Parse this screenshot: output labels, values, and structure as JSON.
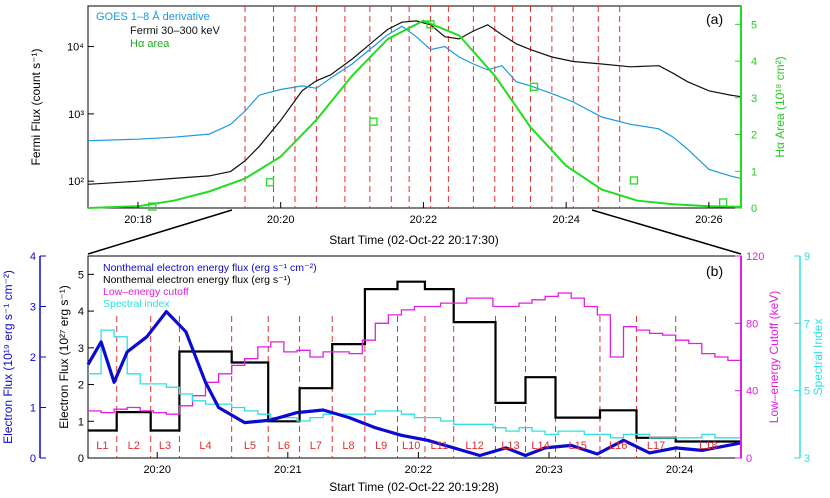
{
  "chart_data": [
    {
      "type": "line",
      "panel_label": "(a)",
      "xlabel": "Start Time (02-Oct-22 20:17:30)",
      "ylabel_left": "Fermi Flux (count s⁻¹)",
      "ylabel_right": "Hα Area (10¹⁸ cm²)",
      "x_range_minutes": [
        -0.2,
        8.95
      ],
      "x_ticks": [
        "20:18",
        "20:20",
        "20:22",
        "20:24",
        "20:26"
      ],
      "x_tick_minutes": [
        0.5,
        2.5,
        4.5,
        6.5,
        8.5
      ],
      "y_left_scale": "log",
      "y_left_range": [
        40,
        40000
      ],
      "y_left_ticks": [
        "10²",
        "10³",
        "10⁴"
      ],
      "y_left_tick_values": [
        100,
        1000,
        10000
      ],
      "y_right_range": [
        0,
        5.5
      ],
      "y_right_ticks": [
        "0",
        "1",
        "2",
        "3",
        "4",
        "5"
      ],
      "legend": [
        {
          "name": "GOES 1–8 Å derivative",
          "color": "#1a9ae0"
        },
        {
          "name": "Fermi 30–300 keV",
          "color": "#111111"
        },
        {
          "name": "Hα area",
          "color": "#22dd22"
        }
      ],
      "series": [
        {
          "name": "Fermi 30–300 keV",
          "axis": "left",
          "x": [
            -0.2,
            0.5,
            1.0,
            1.5,
            1.8,
            2.0,
            2.2,
            2.5,
            2.8,
            3.0,
            3.2,
            3.5,
            3.8,
            4.0,
            4.2,
            4.4,
            4.6,
            4.8,
            5.0,
            5.2,
            5.4,
            5.6,
            5.8,
            6.0,
            6.3,
            6.6,
            7.0,
            7.4,
            7.8,
            8.0,
            8.2,
            8.5,
            8.8,
            8.95
          ],
          "y": [
            90,
            100,
            110,
            120,
            140,
            200,
            330,
            800,
            2200,
            3100,
            3800,
            6500,
            12000,
            18000,
            23000,
            24000,
            21000,
            14000,
            13000,
            17000,
            21000,
            15000,
            11000,
            9000,
            7000,
            6000,
            5500,
            5000,
            5200,
            4000,
            3000,
            2200,
            1900,
            1800
          ]
        },
        {
          "name": "GOES 1–8 Å derivative",
          "axis": "left",
          "x": [
            -0.2,
            0.5,
            1.0,
            1.5,
            1.8,
            2.0,
            2.2,
            2.5,
            2.8,
            3.0,
            3.2,
            3.5,
            3.8,
            4.0,
            4.2,
            4.4,
            4.6,
            4.8,
            5.0,
            5.2,
            5.4,
            5.6,
            5.8,
            6.0,
            6.3,
            6.6,
            7.0,
            7.4,
            7.8,
            8.0,
            8.2,
            8.5,
            8.8,
            8.95
          ],
          "y": [
            400,
            420,
            450,
            500,
            700,
            1100,
            1900,
            2300,
            2600,
            2400,
            3400,
            5500,
            10000,
            15000,
            20000,
            14000,
            9000,
            10000,
            7000,
            5500,
            4500,
            5200,
            3000,
            2600,
            2000,
            1500,
            900,
            700,
            600,
            450,
            300,
            150,
            120,
            110
          ]
        },
        {
          "name": "Hα area",
          "axis": "right",
          "x": [
            -0.2,
            0.5,
            1.0,
            1.5,
            2.0,
            2.5,
            3.0,
            3.5,
            4.0,
            4.5,
            5.0,
            5.5,
            6.0,
            6.5,
            7.0,
            7.5,
            8.0,
            8.5,
            8.95
          ],
          "y": [
            0.0,
            0.05,
            0.2,
            0.45,
            0.8,
            1.4,
            2.4,
            3.6,
            4.6,
            5.1,
            4.7,
            3.6,
            2.2,
            1.15,
            0.5,
            0.2,
            0.1,
            0.05,
            0.03
          ]
        }
      ],
      "markers_halpha": {
        "x": [
          0.7,
          2.35,
          3.8,
          4.6,
          6.05,
          7.45,
          8.7
        ],
        "y": [
          0.04,
          0.7,
          2.35,
          5.0,
          3.3,
          0.75,
          0.15
        ]
      },
      "vlines_minutes": [
        2.0,
        2.4,
        2.7,
        3.0,
        3.4,
        3.75,
        4.05,
        4.3,
        4.6,
        4.85,
        5.2,
        5.5,
        5.75,
        6.0,
        6.3,
        6.6,
        6.95,
        7.25
      ]
    },
    {
      "type": "line",
      "panel_label": "(b)",
      "xlabel": "Start Time (02-Oct-22 20:19:28)",
      "ylabel_left_outer": "Electron Flux (10¹⁹ erg s⁻¹ cm⁻²)",
      "ylabel_left_inner": "Electron Flux (10²⁷ erg s⁻¹)",
      "ylabel_right_inner": "Low–energy Cutoff (keV)",
      "ylabel_right_outer": "Spectral Index",
      "x_range_minutes": [
        0.0,
        5.0
      ],
      "x_ticks": [
        "20:20",
        "20:21",
        "20:22",
        "20:23",
        "20:24"
      ],
      "x_tick_minutes": [
        0.53,
        1.53,
        2.53,
        3.53,
        4.53
      ],
      "y_inner_left_range": [
        0,
        5.5
      ],
      "y_inner_left_ticks": [
        "0",
        "1",
        "2",
        "3",
        "4",
        "5"
      ],
      "y_outer_left_range": [
        0,
        4
      ],
      "y_outer_left_ticks": [
        "0",
        "1",
        "2",
        "3",
        "4"
      ],
      "y_inner_right_range": [
        0,
        120
      ],
      "y_inner_right_ticks": [
        "0",
        "40",
        "80",
        "120"
      ],
      "y_outer_right_range": [
        3,
        9
      ],
      "y_outer_right_ticks": [
        "3",
        "5",
        "7",
        "9"
      ],
      "legend": [
        {
          "name": "Nonthemal electron energy flux (erg s⁻¹ cm⁻²)",
          "color": "#0a0ad0"
        },
        {
          "name": "Nonthemal electron energy flux (erg s⁻¹)",
          "color": "#000000"
        },
        {
          "name": "Low–energy cutoff",
          "color": "#e020e0"
        },
        {
          "name": "Spectral index",
          "color": "#30e0e0"
        }
      ],
      "interval_labels": [
        "L1",
        "L2",
        "L3",
        "L4",
        "L5",
        "L6",
        "L7",
        "L8",
        "L9",
        "L10",
        "L11",
        "L12",
        "L13",
        "L14",
        "L15",
        "L16",
        "L17",
        "L18"
      ],
      "interval_edges": [
        0.0,
        0.22,
        0.48,
        0.7,
        1.1,
        1.38,
        1.62,
        1.87,
        2.12,
        2.37,
        2.58,
        2.8,
        3.12,
        3.35,
        3.58,
        3.92,
        4.2,
        4.5,
        5.0
      ],
      "series": [
        {
          "name": "Nonthemal electron energy flux (erg s⁻¹)",
          "axis": "left_inner",
          "step": true,
          "y": [
            0.75,
            1.25,
            0.75,
            2.9,
            2.6,
            1.0,
            1.9,
            3.1,
            4.6,
            4.8,
            4.6,
            3.7,
            1.5,
            2.2,
            1.1,
            1.3,
            0.55,
            0.45
          ]
        },
        {
          "name": "Low–energy cutoff",
          "axis": "right_inner",
          "step": true,
          "y": [
            28,
            27,
            29,
            30,
            28,
            27,
            26,
            31,
            37,
            45,
            50,
            55,
            59,
            66,
            69,
            63,
            64,
            60,
            63,
            63,
            62,
            70,
            80,
            85,
            88,
            90,
            90,
            92,
            92,
            95,
            95,
            90,
            90,
            92,
            94,
            96,
            98,
            95,
            90,
            85,
            60,
            78,
            76,
            74,
            73,
            70,
            68,
            62,
            60,
            58
          ]
        },
        {
          "name": "Spectral index",
          "axis": "right_outer",
          "step": true,
          "y": [
            5.5,
            6.8,
            6.6,
            5.5,
            5.2,
            5.2,
            5.1,
            4.9,
            4.7,
            4.6,
            4.6,
            4.5,
            4.4,
            4.3,
            4.2,
            4.2,
            4.1,
            4.2,
            4.3,
            4.3,
            4.3,
            4.3,
            4.4,
            4.4,
            4.3,
            4.2,
            4.2,
            4.1,
            4.0,
            4.0,
            4.0,
            3.9,
            3.8,
            3.9,
            3.8,
            3.7,
            3.8,
            3.8,
            3.7,
            3.7,
            3.6,
            3.7,
            3.7,
            3.6,
            3.6,
            3.6,
            3.6,
            3.7,
            3.6,
            3.6
          ]
        },
        {
          "name": "Nonthemal electron energy flux (erg s⁻¹ cm⁻²)",
          "axis": "left_outer",
          "x": [
            0.0,
            0.1,
            0.2,
            0.3,
            0.45,
            0.6,
            0.75,
            0.9,
            1.0,
            1.2,
            1.4,
            1.6,
            1.8,
            2.0,
            2.2,
            2.4,
            2.6,
            2.8,
            3.0,
            3.2,
            3.35,
            3.5,
            3.7,
            3.9,
            4.1,
            4.3,
            4.5,
            4.7,
            4.9,
            5.0
          ],
          "y": [
            1.85,
            2.3,
            1.5,
            2.1,
            2.4,
            2.9,
            2.5,
            1.5,
            1.0,
            0.7,
            0.75,
            0.9,
            0.95,
            0.8,
            0.6,
            0.45,
            0.35,
            0.2,
            0.05,
            0.2,
            0.05,
            0.2,
            0.25,
            0.08,
            0.35,
            0.1,
            0.2,
            0.15,
            0.25,
            0.3
          ]
        }
      ],
      "vlines_minutes": [
        0.22,
        0.48,
        0.7,
        1.1,
        1.38,
        1.62,
        1.87,
        2.12,
        2.37,
        2.58,
        2.8,
        3.12,
        3.35,
        3.58,
        3.92,
        4.2,
        4.5
      ]
    }
  ]
}
